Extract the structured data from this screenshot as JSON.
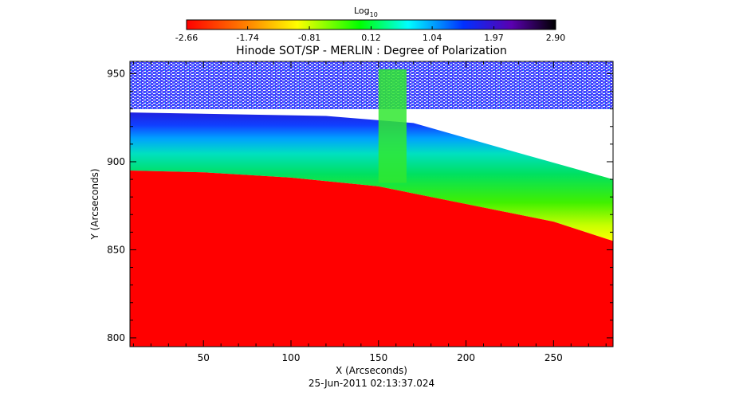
{
  "chart_data": {
    "type": "heatmap",
    "title": "Hinode SOT/SP - MERLIN : Degree of Polarization",
    "xlabel": "X (Arcseconds)",
    "ylabel": "Y (Arcseconds)",
    "timestamp": "25-Jun-2011 02:13:37.024",
    "xlim": [
      8,
      284
    ],
    "ylim": [
      795,
      957
    ],
    "x_ticks": [
      50,
      100,
      150,
      200,
      250
    ],
    "y_ticks": [
      800,
      850,
      900,
      950
    ],
    "x_tick_labels": [
      "50",
      "100",
      "150",
      "200",
      "250"
    ],
    "y_tick_labels": [
      "800",
      "850",
      "900",
      "950"
    ],
    "colorbar": {
      "label": "Log",
      "label_subscript": "10",
      "range": [
        -2.66,
        2.9
      ],
      "ticks": [
        -2.66,
        -1.74,
        -0.81,
        0.12,
        1.04,
        1.97,
        2.9
      ],
      "tick_labels": [
        "-2.66",
        "-1.74",
        "-0.81",
        "0.12",
        "1.04",
        "1.97",
        "2.90"
      ],
      "colors": [
        "#ff0000",
        "#ff9000",
        "#ffff00",
        "#00ff00",
        "#00ffff",
        "#0000ff",
        "#000000"
      ]
    },
    "limb_y": [
      [
        8,
        895
      ],
      [
        50,
        894
      ],
      [
        100,
        891
      ],
      [
        150,
        886
      ],
      [
        200,
        876
      ],
      [
        250,
        866
      ],
      [
        284,
        855
      ]
    ],
    "band_note": "vertical feature near X 150-166 extends to top of map",
    "band_x": [
      150,
      166
    ],
    "grid": false
  }
}
